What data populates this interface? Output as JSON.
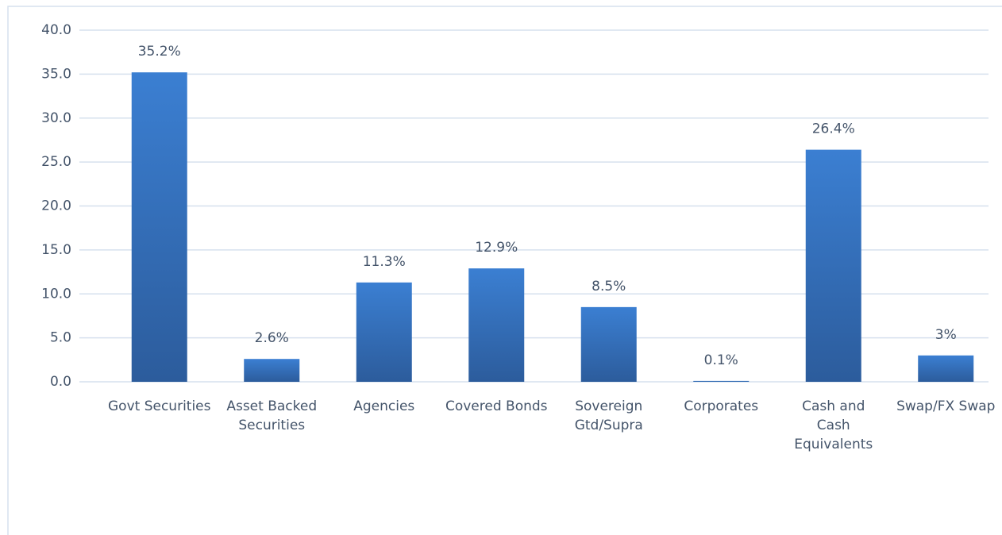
{
  "chart_data": {
    "type": "bar",
    "categories": [
      "Govt Securities",
      "Asset Backed Securities",
      "Agencies",
      "Covered Bonds",
      "Sovereign Gtd/Supra",
      "Corporates",
      "Cash and Cash Equivalents",
      "Swap/FX Swap"
    ],
    "values": [
      35.2,
      2.6,
      11.3,
      12.9,
      8.5,
      0.1,
      26.4,
      3
    ],
    "value_labels": [
      "35.2%",
      "2.6%",
      "11.3%",
      "12.9%",
      "8.5%",
      "0.1%",
      "26.4%",
      "3%"
    ],
    "color": "#3a7bd0",
    "ylim": [
      0,
      40
    ],
    "yticks": [
      {
        "value": 0,
        "label": "0.0"
      },
      {
        "value": 5,
        "label": "5.0"
      },
      {
        "value": 10,
        "label": "10.0"
      },
      {
        "value": 15,
        "label": "15.0"
      },
      {
        "value": 20,
        "label": "20.0"
      },
      {
        "value": 25,
        "label": "25.0"
      },
      {
        "value": 30,
        "label": "30.0"
      },
      {
        "value": 35,
        "label": "35.0"
      },
      {
        "value": 40,
        "label": "40.0"
      }
    ],
    "grid": true
  }
}
